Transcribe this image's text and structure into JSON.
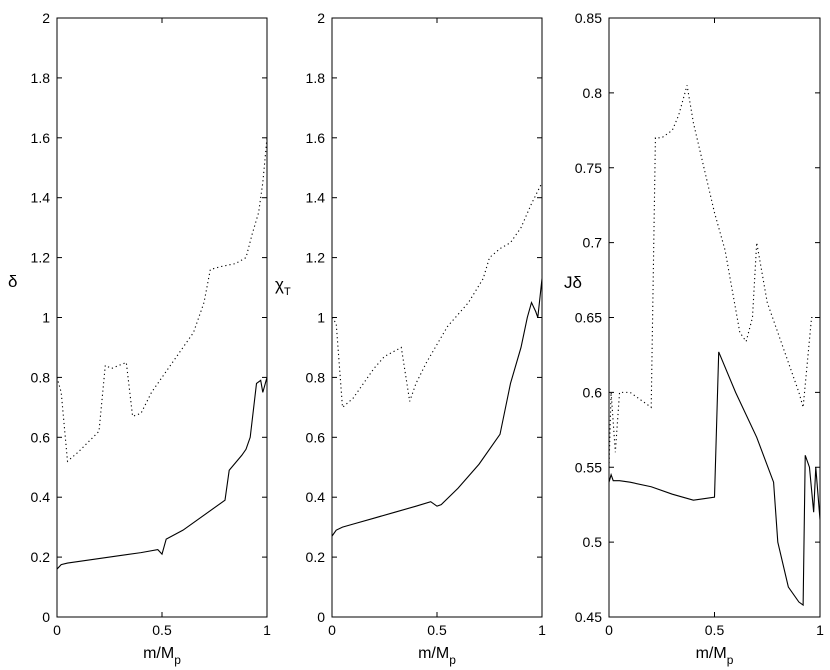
{
  "chart_data": [
    {
      "type": "line",
      "title": "",
      "xlabel": "m/M",
      "xlabel_sub": "p",
      "ylabel": "δ",
      "ylabel_sub": "",
      "xlim": [
        0,
        1
      ],
      "ylim": [
        0,
        2
      ],
      "xticks": [
        0,
        0.5,
        1
      ],
      "xtick_labels": [
        "0",
        "0.5",
        "1"
      ],
      "yticks": [
        0,
        0.2,
        0.4,
        0.6,
        0.8,
        1,
        1.2,
        1.4,
        1.6,
        1.8,
        2
      ],
      "ytick_labels": [
        "0",
        "0.2",
        "0.4",
        "0.6",
        "0.8",
        "1",
        "1.2",
        "1.4",
        "1.6",
        "1.8",
        "2"
      ],
      "grid": false,
      "series": [
        {
          "style": "solid",
          "color": "#000000",
          "x": [
            0,
            0.02,
            0.05,
            0.1,
            0.2,
            0.3,
            0.4,
            0.48,
            0.5,
            0.52,
            0.6,
            0.7,
            0.8,
            0.82,
            0.88,
            0.9,
            0.92,
            0.95,
            0.97,
            0.98,
            1.0
          ],
          "y": [
            0.16,
            0.175,
            0.18,
            0.185,
            0.195,
            0.205,
            0.215,
            0.225,
            0.21,
            0.26,
            0.29,
            0.34,
            0.39,
            0.49,
            0.54,
            0.56,
            0.6,
            0.78,
            0.79,
            0.75,
            0.8
          ]
        },
        {
          "style": "dotted",
          "color": "#000000",
          "x": [
            0,
            0.02,
            0.05,
            0.1,
            0.2,
            0.23,
            0.26,
            0.33,
            0.36,
            0.4,
            0.45,
            0.55,
            0.65,
            0.7,
            0.73,
            0.78,
            0.85,
            0.9,
            0.93,
            0.96,
            0.98,
            1.0
          ],
          "y": [
            0.8,
            0.75,
            0.52,
            0.55,
            0.62,
            0.84,
            0.83,
            0.85,
            0.67,
            0.68,
            0.75,
            0.85,
            0.95,
            1.05,
            1.16,
            1.17,
            1.18,
            1.2,
            1.28,
            1.35,
            1.45,
            1.6
          ]
        }
      ]
    },
    {
      "type": "line",
      "title": "",
      "xlabel": "m/M",
      "xlabel_sub": "p",
      "ylabel": "χ",
      "ylabel_sub": "T",
      "xlim": [
        0,
        1
      ],
      "ylim": [
        0,
        2
      ],
      "xticks": [
        0,
        0.5,
        1
      ],
      "xtick_labels": [
        "0",
        "0.5",
        "1"
      ],
      "yticks": [
        0,
        0.2,
        0.4,
        0.6,
        0.8,
        1,
        1.2,
        1.4,
        1.6,
        1.8,
        2
      ],
      "ytick_labels": [
        "0",
        "0.2",
        "0.4",
        "0.6",
        "0.8",
        "1",
        "1.2",
        "1.4",
        "1.6",
        "1.8",
        "2"
      ],
      "grid": false,
      "series": [
        {
          "style": "solid",
          "color": "#000000",
          "x": [
            0,
            0.02,
            0.05,
            0.1,
            0.2,
            0.3,
            0.4,
            0.47,
            0.5,
            0.52,
            0.6,
            0.7,
            0.8,
            0.85,
            0.9,
            0.93,
            0.95,
            0.97,
            0.98,
            1.0
          ],
          "y": [
            0.27,
            0.29,
            0.3,
            0.31,
            0.33,
            0.35,
            0.37,
            0.385,
            0.37,
            0.375,
            0.43,
            0.51,
            0.61,
            0.78,
            0.9,
            1.0,
            1.05,
            1.02,
            1.0,
            1.13
          ]
        },
        {
          "style": "dotted",
          "color": "#000000",
          "x": [
            0,
            0.02,
            0.05,
            0.1,
            0.15,
            0.2,
            0.25,
            0.33,
            0.37,
            0.4,
            0.45,
            0.55,
            0.65,
            0.72,
            0.75,
            0.8,
            0.85,
            0.9,
            0.95,
            1.0
          ],
          "y": [
            1.0,
            0.98,
            0.7,
            0.73,
            0.78,
            0.83,
            0.87,
            0.9,
            0.72,
            0.78,
            0.85,
            0.97,
            1.05,
            1.13,
            1.2,
            1.23,
            1.25,
            1.3,
            1.38,
            1.45
          ]
        }
      ]
    },
    {
      "type": "line",
      "title": "",
      "xlabel": "m/M",
      "xlabel_sub": "p",
      "ylabel": "Jδ",
      "ylabel_sub": "",
      "xlim": [
        0,
        1
      ],
      "ylim": [
        0.45,
        0.85
      ],
      "xticks": [
        0,
        0.5,
        1
      ],
      "xtick_labels": [
        "0",
        "0.5",
        "1"
      ],
      "yticks": [
        0.45,
        0.5,
        0.55,
        0.6,
        0.65,
        0.7,
        0.75,
        0.8,
        0.85
      ],
      "ytick_labels": [
        "0.45",
        "0.5",
        "0.55",
        "0.6",
        "0.65",
        "0.7",
        "0.75",
        "0.8",
        "0.85"
      ],
      "grid": false,
      "series": [
        {
          "style": "solid",
          "color": "#000000",
          "x": [
            0,
            0.01,
            0.02,
            0.05,
            0.1,
            0.2,
            0.3,
            0.35,
            0.4,
            0.45,
            0.5,
            0.52,
            0.6,
            0.7,
            0.78,
            0.8,
            0.85,
            0.9,
            0.92,
            0.93,
            0.95,
            0.97,
            0.98,
            1.0
          ],
          "y": [
            0.54,
            0.545,
            0.541,
            0.541,
            0.54,
            0.537,
            0.532,
            0.53,
            0.528,
            0.529,
            0.53,
            0.627,
            0.6,
            0.57,
            0.54,
            0.5,
            0.47,
            0.46,
            0.458,
            0.558,
            0.55,
            0.52,
            0.55,
            0.515
          ]
        },
        {
          "style": "dotted",
          "color": "#000000",
          "x": [
            0,
            0.01,
            0.02,
            0.03,
            0.05,
            0.1,
            0.2,
            0.22,
            0.25,
            0.3,
            0.33,
            0.37,
            0.4,
            0.5,
            0.55,
            0.62,
            0.65,
            0.68,
            0.7,
            0.75,
            0.8,
            0.85,
            0.9,
            0.92,
            0.94,
            0.96,
            1.0
          ],
          "y": [
            0.55,
            0.6,
            0.58,
            0.56,
            0.6,
            0.6,
            0.59,
            0.77,
            0.77,
            0.775,
            0.785,
            0.805,
            0.78,
            0.72,
            0.695,
            0.64,
            0.634,
            0.65,
            0.7,
            0.66,
            0.64,
            0.62,
            0.6,
            0.59,
            0.62,
            0.65,
            0.65
          ]
        }
      ]
    }
  ]
}
